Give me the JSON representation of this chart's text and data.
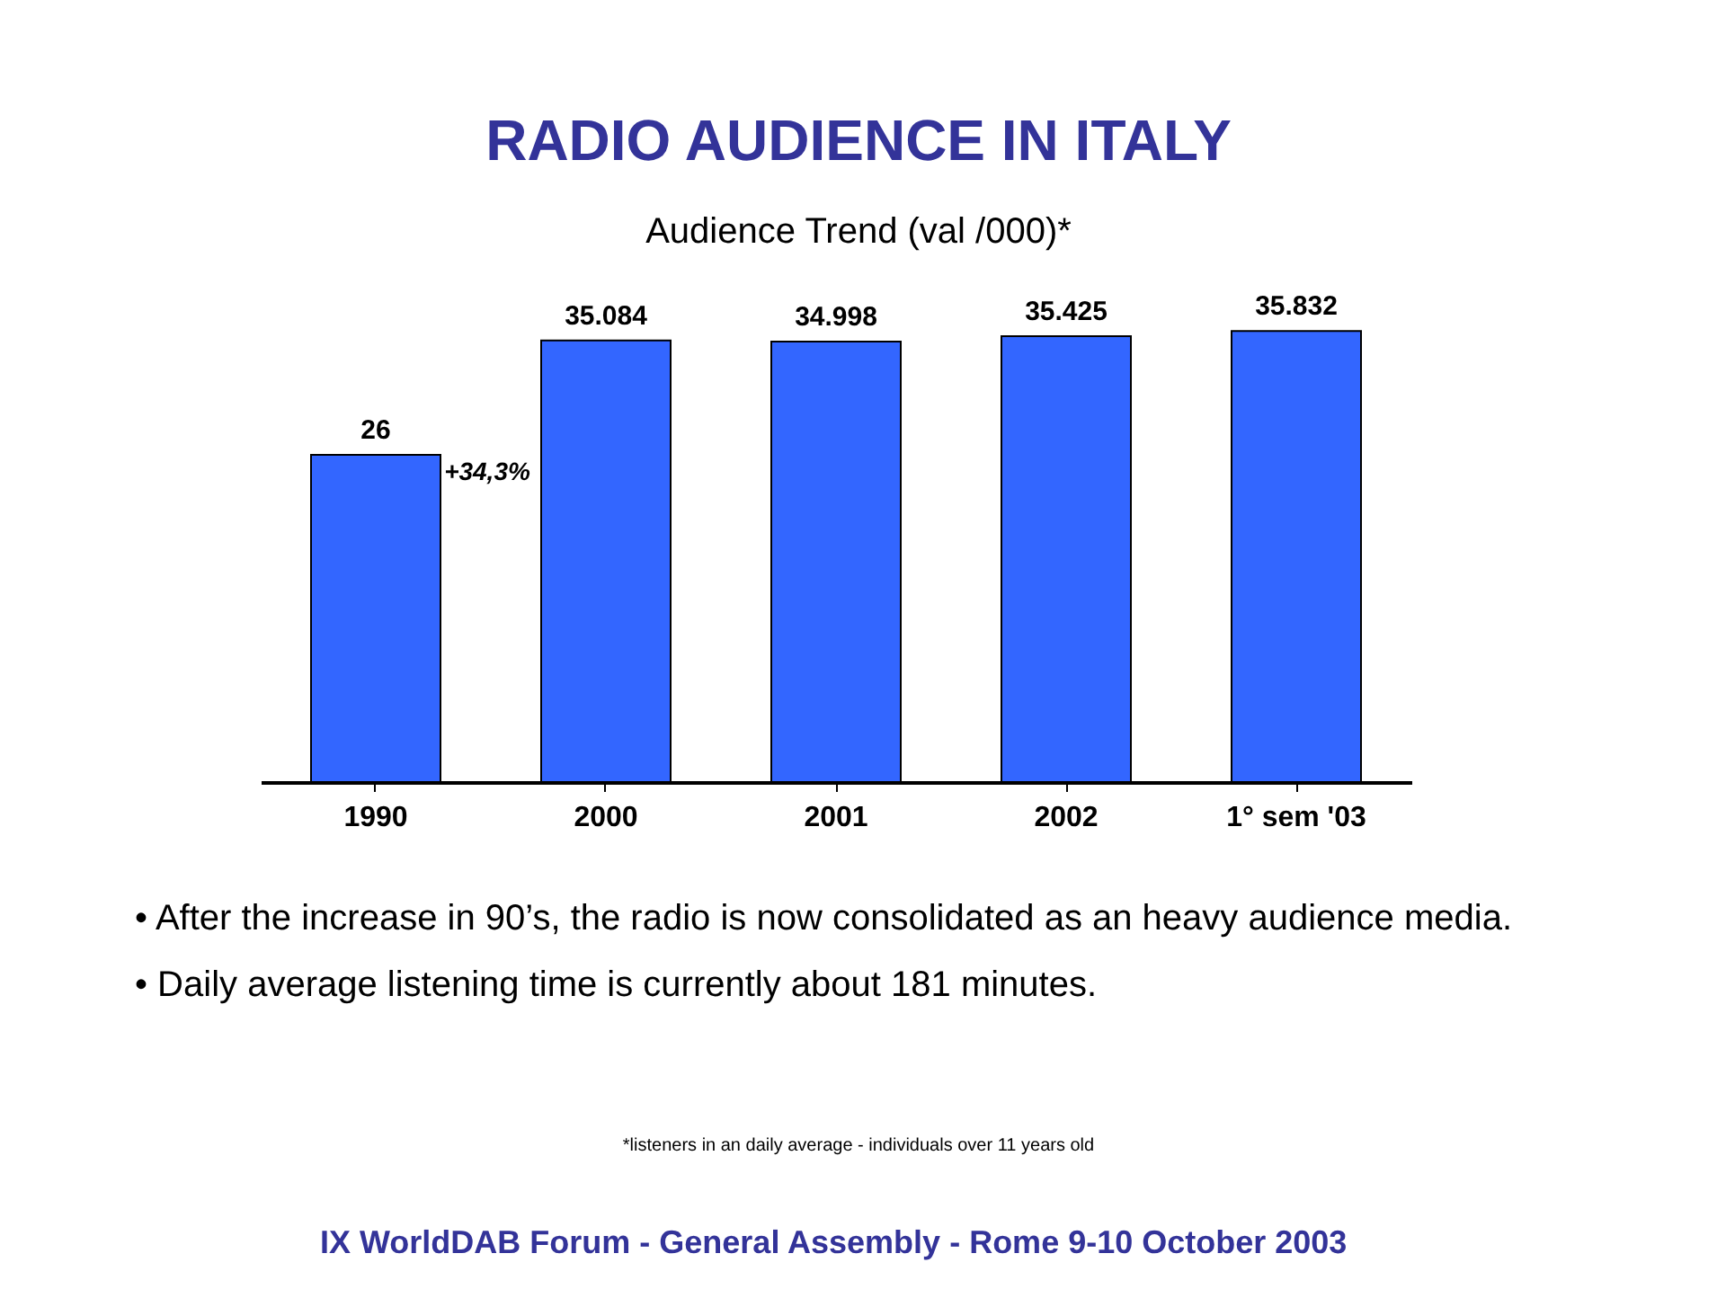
{
  "chart_data": {
    "type": "bar",
    "title": "RADIO AUDIENCE IN ITALY",
    "subtitle": "Audience Trend (val /000)*",
    "categories": [
      "1990",
      "2000",
      "2001",
      "2002",
      "1° sem '03"
    ],
    "values": [
      26,
      35.084,
      34.998,
      35.425,
      35.832
    ],
    "value_labels": [
      "26",
      "35.084",
      "34.998",
      "35.425",
      "35.832"
    ],
    "color": "#3366ff",
    "annotations": [
      {
        "text": "+34,3%",
        "x": "1990",
        "y": 26
      },
      "• After the increase in 90’s, the radio is now consolidated as an heavy audience media.",
      "• Daily average listening time is currently about 181 minutes.",
      "*listeners in an daily average - individuals over 11 years old",
      "IX WorldDAB Forum - General Assembly - Rome 9-10 October 2003"
    ]
  }
}
